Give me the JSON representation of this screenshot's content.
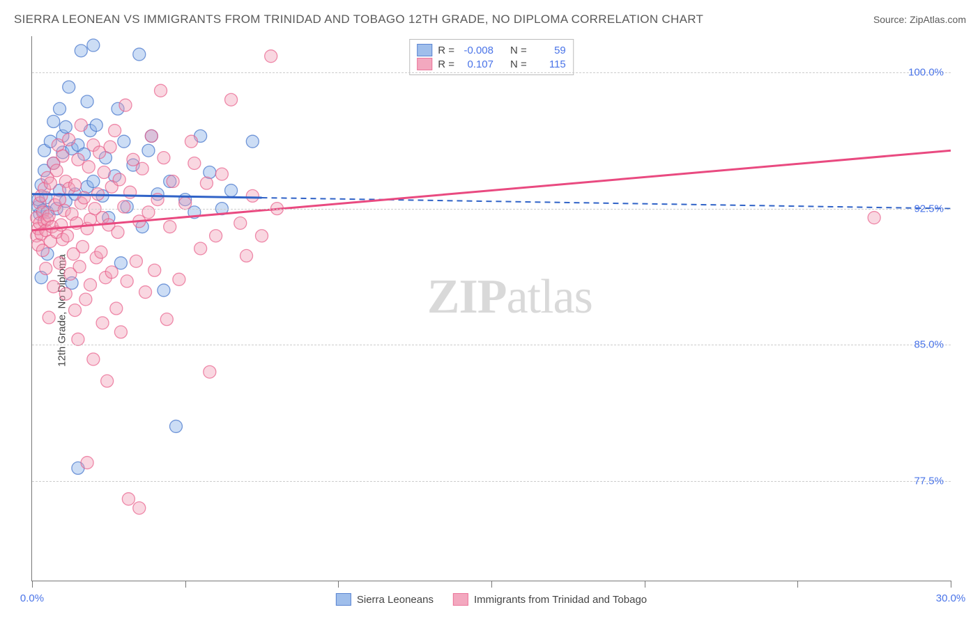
{
  "title": "SIERRA LEONEAN VS IMMIGRANTS FROM TRINIDAD AND TOBAGO 12TH GRADE, NO DIPLOMA CORRELATION CHART",
  "source_label": "Source: ZipAtlas.com",
  "y_axis_label": "12th Grade, No Diploma",
  "watermark_a": "ZIP",
  "watermark_b": "atlas",
  "chart": {
    "type": "scatter",
    "xlim": [
      0,
      30
    ],
    "ylim": [
      72,
      102
    ],
    "x_ticks": [
      0,
      5,
      10,
      15,
      20,
      25,
      30
    ],
    "x_tick_labels": {
      "0": "0.0%",
      "30": "30.0%"
    },
    "y_ticks": [
      77.5,
      85.0,
      92.5,
      100.0
    ],
    "y_tick_labels": [
      "77.5%",
      "85.0%",
      "92.5%",
      "100.0%"
    ],
    "grid_color": "#cccccc",
    "background_color": "#ffffff",
    "axis_color": "#777777",
    "tick_label_color": "#4a74e8",
    "series": [
      {
        "key": "blue",
        "label": "Sierra Leoneans",
        "fill": "#8fb3e8",
        "fill_opacity": 0.45,
        "stroke": "#3d6fc9",
        "stroke_opacity": 0.7,
        "marker_radius": 9,
        "r_value": "-0.008",
        "n_value": "59",
        "trend": {
          "x1": 0,
          "y1": 93.3,
          "x2": 30,
          "y2": 92.5,
          "solid_until_x": 7.5,
          "color": "#2f62c7",
          "width": 3
        },
        "points": [
          [
            0.2,
            92.6
          ],
          [
            0.2,
            93.0
          ],
          [
            0.25,
            92.2
          ],
          [
            0.3,
            93.8
          ],
          [
            0.3,
            88.7
          ],
          [
            0.35,
            92.4
          ],
          [
            0.4,
            95.7
          ],
          [
            0.4,
            94.6
          ],
          [
            0.45,
            93.1
          ],
          [
            0.5,
            92.3
          ],
          [
            0.5,
            90.0
          ],
          [
            0.6,
            96.2
          ],
          [
            0.7,
            95.0
          ],
          [
            0.7,
            97.3
          ],
          [
            0.8,
            92.5
          ],
          [
            0.9,
            98.0
          ],
          [
            0.9,
            93.5
          ],
          [
            1.0,
            96.5
          ],
          [
            1.0,
            95.6
          ],
          [
            1.1,
            97.0
          ],
          [
            1.1,
            92.9
          ],
          [
            1.2,
            99.2
          ],
          [
            1.3,
            95.8
          ],
          [
            1.3,
            88.4
          ],
          [
            1.4,
            93.3
          ],
          [
            1.5,
            96.0
          ],
          [
            1.5,
            78.2
          ],
          [
            1.6,
            101.2
          ],
          [
            1.7,
            95.5
          ],
          [
            1.8,
            98.4
          ],
          [
            1.8,
            93.7
          ],
          [
            1.9,
            96.8
          ],
          [
            2.0,
            101.5
          ],
          [
            2.0,
            94.0
          ],
          [
            2.1,
            97.1
          ],
          [
            2.3,
            93.2
          ],
          [
            2.4,
            95.3
          ],
          [
            2.5,
            92.0
          ],
          [
            2.7,
            94.3
          ],
          [
            2.8,
            98.0
          ],
          [
            2.9,
            89.5
          ],
          [
            3.0,
            96.2
          ],
          [
            3.1,
            92.6
          ],
          [
            3.3,
            94.9
          ],
          [
            3.5,
            101.0
          ],
          [
            3.6,
            91.5
          ],
          [
            3.8,
            95.7
          ],
          [
            3.9,
            96.5
          ],
          [
            4.1,
            93.3
          ],
          [
            4.3,
            88.0
          ],
          [
            4.5,
            94.0
          ],
          [
            4.7,
            80.5
          ],
          [
            5.0,
            93.0
          ],
          [
            5.3,
            92.3
          ],
          [
            5.5,
            96.5
          ],
          [
            5.8,
            94.5
          ],
          [
            6.2,
            92.5
          ],
          [
            6.5,
            93.5
          ],
          [
            7.2,
            96.2
          ]
        ]
      },
      {
        "key": "pink",
        "label": "Immigrants from Trinidad and Tobago",
        "fill": "#f19ab4",
        "fill_opacity": 0.4,
        "stroke": "#e85d89",
        "stroke_opacity": 0.7,
        "marker_radius": 9,
        "r_value": "0.107",
        "n_value": "115",
        "trend": {
          "x1": 0,
          "y1": 91.3,
          "x2": 30,
          "y2": 95.7,
          "solid_until_x": 30,
          "color": "#e94a80",
          "width": 3
        },
        "points": [
          [
            0.15,
            91.0
          ],
          [
            0.15,
            92.0
          ],
          [
            0.2,
            91.4
          ],
          [
            0.2,
            90.5
          ],
          [
            0.25,
            92.8
          ],
          [
            0.25,
            91.7
          ],
          [
            0.3,
            91.1
          ],
          [
            0.3,
            93.2
          ],
          [
            0.35,
            90.2
          ],
          [
            0.35,
            92.3
          ],
          [
            0.4,
            91.8
          ],
          [
            0.4,
            93.6
          ],
          [
            0.45,
            91.3
          ],
          [
            0.45,
            89.2
          ],
          [
            0.5,
            91.9
          ],
          [
            0.5,
            94.2
          ],
          [
            0.55,
            86.5
          ],
          [
            0.55,
            92.1
          ],
          [
            0.6,
            90.7
          ],
          [
            0.6,
            93.9
          ],
          [
            0.65,
            91.5
          ],
          [
            0.7,
            95.0
          ],
          [
            0.7,
            88.2
          ],
          [
            0.75,
            92.7
          ],
          [
            0.8,
            94.6
          ],
          [
            0.8,
            91.2
          ],
          [
            0.85,
            96.0
          ],
          [
            0.9,
            93.0
          ],
          [
            0.9,
            89.5
          ],
          [
            0.95,
            91.6
          ],
          [
            1.0,
            95.4
          ],
          [
            1.0,
            90.8
          ],
          [
            1.05,
            92.4
          ],
          [
            1.1,
            94.0
          ],
          [
            1.1,
            87.8
          ],
          [
            1.15,
            91.0
          ],
          [
            1.2,
            96.3
          ],
          [
            1.2,
            93.6
          ],
          [
            1.25,
            88.9
          ],
          [
            1.3,
            92.2
          ],
          [
            1.35,
            90.0
          ],
          [
            1.4,
            93.8
          ],
          [
            1.4,
            86.9
          ],
          [
            1.45,
            91.7
          ],
          [
            1.5,
            95.2
          ],
          [
            1.5,
            85.3
          ],
          [
            1.55,
            89.3
          ],
          [
            1.6,
            92.8
          ],
          [
            1.6,
            97.1
          ],
          [
            1.65,
            90.4
          ],
          [
            1.7,
            93.1
          ],
          [
            1.75,
            87.5
          ],
          [
            1.8,
            91.4
          ],
          [
            1.85,
            94.8
          ],
          [
            1.9,
            88.3
          ],
          [
            1.9,
            91.9
          ],
          [
            2.0,
            96.0
          ],
          [
            2.0,
            84.2
          ],
          [
            2.05,
            92.5
          ],
          [
            2.1,
            89.8
          ],
          [
            2.15,
            93.3
          ],
          [
            2.2,
            95.6
          ],
          [
            2.25,
            90.1
          ],
          [
            2.3,
            86.2
          ],
          [
            2.3,
            92.0
          ],
          [
            2.35,
            94.5
          ],
          [
            2.4,
            88.7
          ],
          [
            2.45,
            83.0
          ],
          [
            2.5,
            91.6
          ],
          [
            2.55,
            95.9
          ],
          [
            2.6,
            89.0
          ],
          [
            2.6,
            93.7
          ],
          [
            2.7,
            96.8
          ],
          [
            2.75,
            87.0
          ],
          [
            2.8,
            91.2
          ],
          [
            2.85,
            94.1
          ],
          [
            2.9,
            85.7
          ],
          [
            3.0,
            92.6
          ],
          [
            3.05,
            98.2
          ],
          [
            3.1,
            88.5
          ],
          [
            3.15,
            76.5
          ],
          [
            3.2,
            93.4
          ],
          [
            3.3,
            95.2
          ],
          [
            3.4,
            89.6
          ],
          [
            3.5,
            76.0
          ],
          [
            3.5,
            91.8
          ],
          [
            3.6,
            94.7
          ],
          [
            3.7,
            87.9
          ],
          [
            3.8,
            92.3
          ],
          [
            3.9,
            96.5
          ],
          [
            4.0,
            89.1
          ],
          [
            4.1,
            93.0
          ],
          [
            4.2,
            99.0
          ],
          [
            4.3,
            95.3
          ],
          [
            4.4,
            86.4
          ],
          [
            4.5,
            91.5
          ],
          [
            4.6,
            94.0
          ],
          [
            4.8,
            88.6
          ],
          [
            5.0,
            92.8
          ],
          [
            5.2,
            96.2
          ],
          [
            5.3,
            95.0
          ],
          [
            5.5,
            90.3
          ],
          [
            5.7,
            93.9
          ],
          [
            5.8,
            83.5
          ],
          [
            6.0,
            91.0
          ],
          [
            6.2,
            94.4
          ],
          [
            6.5,
            98.5
          ],
          [
            6.8,
            91.7
          ],
          [
            7.0,
            89.9
          ],
          [
            7.2,
            93.2
          ],
          [
            7.5,
            91.0
          ],
          [
            7.8,
            100.9
          ],
          [
            8.0,
            92.5
          ],
          [
            27.5,
            92.0
          ],
          [
            1.8,
            78.5
          ]
        ]
      }
    ]
  },
  "legend_top_labels": {
    "R": "R =",
    "N": "N ="
  }
}
